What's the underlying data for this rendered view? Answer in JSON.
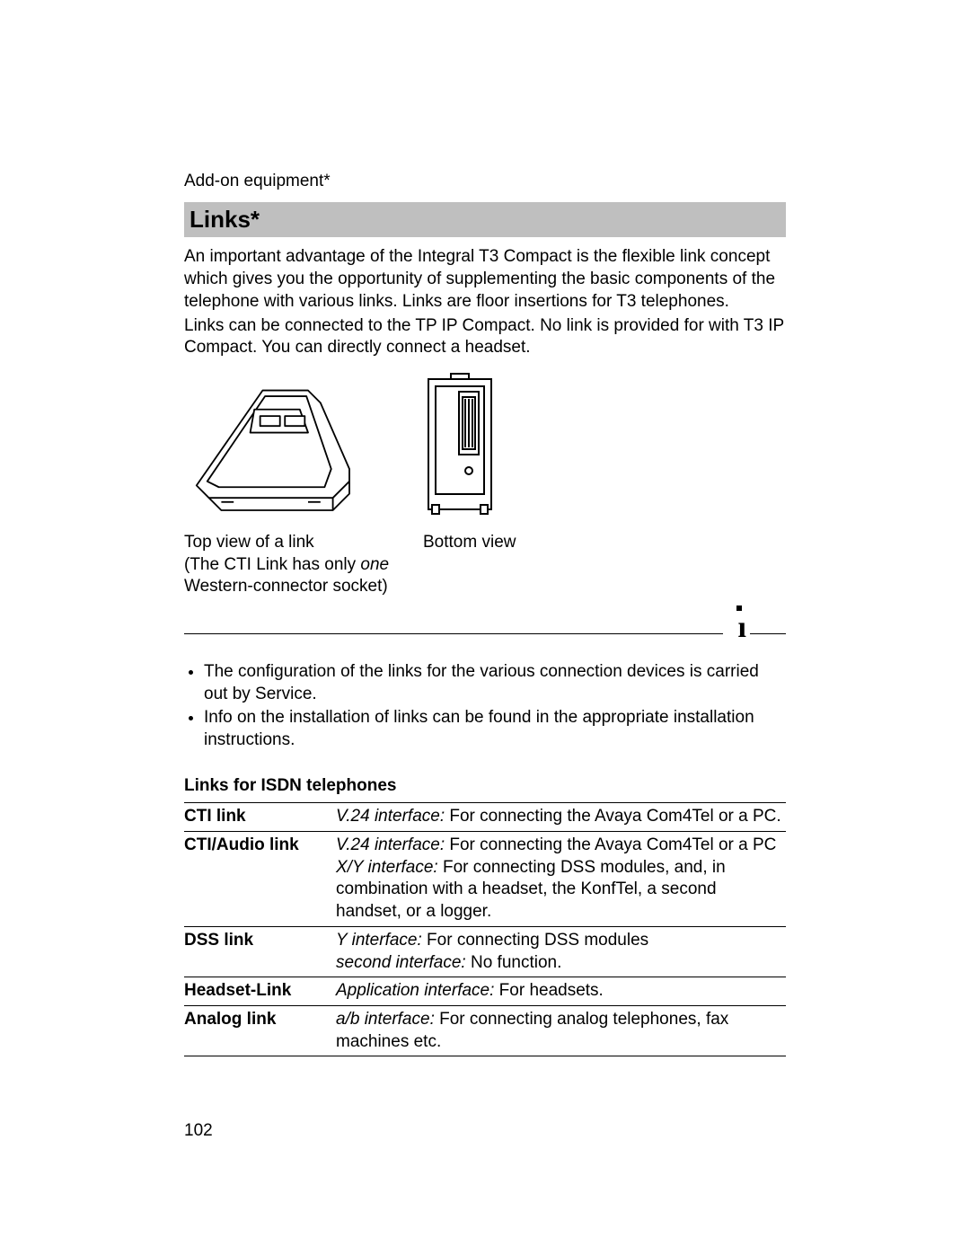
{
  "breadcrumb": "Add-on equipment*",
  "heading": "Links*",
  "intro_para1": "An important advantage of the Integral T3 Compact is the flexible link concept which gives you the opportunity of supplementing the basic components of the telephone with various links. Links are floor insertions for T3 telephones.",
  "intro_para2": "Links can be connected to the TP IP Compact. No link is provided for with T3 IP Compact. You can directly connect a headset.",
  "caption_top_line1": "Top view of a link",
  "caption_top_line2_pre": "(The CTI Link has only ",
  "caption_top_line2_italic": "one",
  "caption_top_line2_post": " Western-connector socket)",
  "caption_bottom": "Bottom view",
  "bullet1": "The configuration of the links for the various connection devices is carried out by Service.",
  "bullet2": "Info on the installation of links can be found in the appropriate installation instructions.",
  "table_title": "Links for ISDN telephones",
  "rows": [
    {
      "name": "CTI link",
      "lines": [
        {
          "italic": "V.24 interface:",
          "rest": " For connecting the Avaya Com4Tel or a PC."
        }
      ]
    },
    {
      "name": "CTI/Audio link",
      "lines": [
        {
          "italic": "V.24 interface:",
          "rest": " For connecting the Avaya Com4Tel or a PC"
        },
        {
          "italic": "X/Y interface:",
          "rest": " For connecting DSS modules, and, in combination with a headset, the KonfTel, a second handset, or a logger."
        }
      ]
    },
    {
      "name": "DSS link",
      "lines": [
        {
          "italic": "Y interface:",
          "rest": " For connecting DSS modules"
        },
        {
          "italic": "second interface:",
          "rest": " No function."
        }
      ]
    },
    {
      "name": "Headset-Link",
      "lines": [
        {
          "italic": "Application interface:",
          "rest": " For headsets."
        }
      ]
    },
    {
      "name": "Analog link",
      "lines": [
        {
          "italic": "a/b interface:",
          "rest": " For connecting analog telephones, fax machines etc."
        }
      ]
    }
  ],
  "page_number": "102",
  "svg": {
    "stroke": "#000000",
    "fill": "#ffffff",
    "stroke_width": 2
  }
}
